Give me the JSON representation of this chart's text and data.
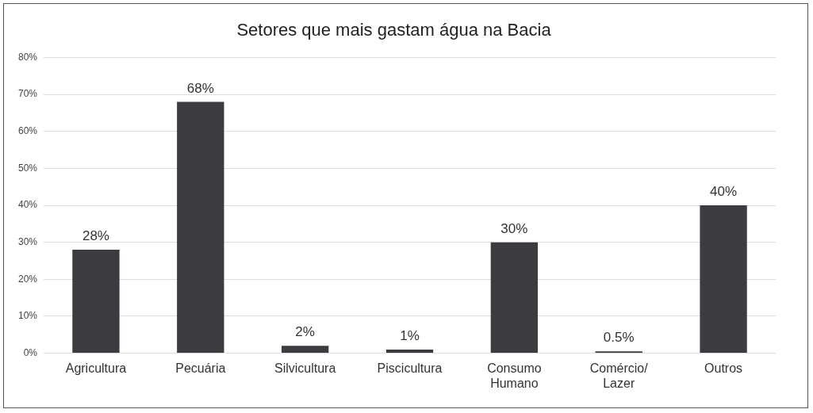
{
  "chart_data": {
    "type": "bar",
    "title": "Setores que mais gastam água na Bacia",
    "categories": [
      "Agricultura",
      "Pecuária",
      "Silvicultura",
      "Piscicultura",
      "Consumo Humano",
      "Comércio/ Lazer",
      "Outros"
    ],
    "values": [
      28,
      68,
      2,
      1,
      30,
      0.5,
      40
    ],
    "value_labels": [
      "28%",
      "68%",
      "2%",
      "1%",
      "30%",
      "0.5%",
      "40%"
    ],
    "color": "#3b3b40",
    "ylim": [
      0,
      80
    ],
    "yticks": [
      {
        "value": 0,
        "label": "0%"
      },
      {
        "value": 10,
        "label": "10%"
      },
      {
        "value": 20,
        "label": "20%"
      },
      {
        "value": 30,
        "label": "30%"
      },
      {
        "value": 40,
        "label": "40%"
      },
      {
        "value": 50,
        "label": "50%"
      },
      {
        "value": 60,
        "label": "60%"
      },
      {
        "value": 70,
        "label": "70%"
      },
      {
        "value": 80,
        "label": "80%"
      }
    ],
    "grid": "y"
  }
}
